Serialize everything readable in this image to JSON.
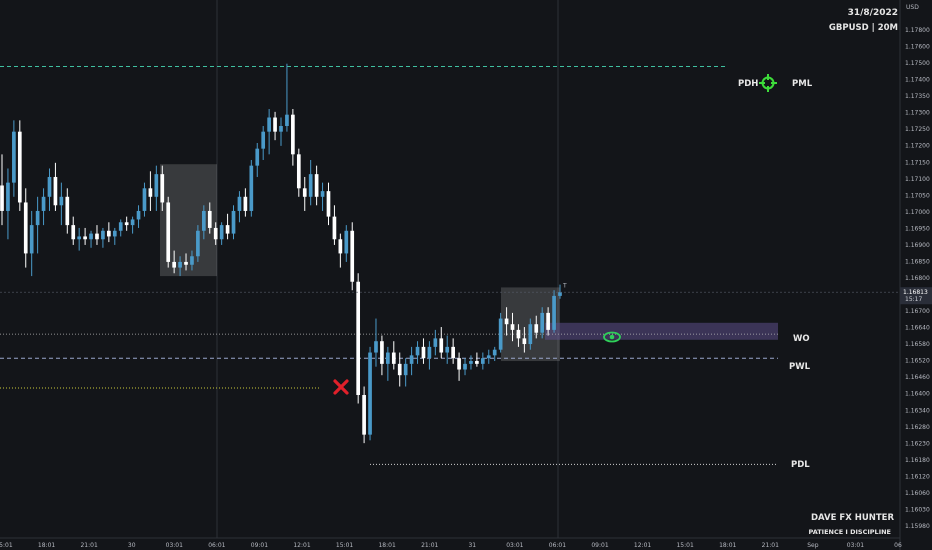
{
  "header": {
    "date": "31/8/2022",
    "symbol": "GBPUSD | 20M"
  },
  "branding": {
    "name": "DAVE FX HUNTER",
    "tagline": "PATIENCE I DISCIPLINE"
  },
  "currency": "USD",
  "current_price": {
    "price": "1.16813",
    "countdown": "15:17"
  },
  "levels": {
    "pdh": "PDH",
    "pml": "PML",
    "wo": "WO",
    "pwl": "PWL",
    "pdl": "PDL"
  },
  "colors": {
    "background": "#131519",
    "bull": "#4a9ac9",
    "bear": "#ffffff",
    "pdh_line": "#3fbfa0",
    "pwl_line": "#9aa6cc",
    "wo_zone": "#5d4f8a",
    "x_mark": "#e0202a",
    "target_icon": "#3ddc3a",
    "eye_icon": "#2fd05a",
    "yellow_line": "#c8c93a"
  },
  "chart_data": {
    "type": "candlestick",
    "symbol": "GBPUSD",
    "timeframe": "20M",
    "ylim": [
      1.15945,
      1.17845
    ],
    "y_ticks": [
      "1.17800",
      "1.17600",
      "1.17500",
      "1.17400",
      "1.17350",
      "1.17300",
      "1.17250",
      "1.17200",
      "1.17150",
      "1.17100",
      "1.17050",
      "1.17000",
      "1.16950",
      "1.16900",
      "1.16850",
      "1.16800",
      "1.16750",
      "1.16700",
      "1.16640",
      "1.16580",
      "1.16520",
      "1.16460",
      "1.16400",
      "1.16340",
      "1.16280",
      "1.16230",
      "1.16180",
      "1.16120",
      "1.16060",
      "1.16030",
      "1.15980"
    ],
    "x_ticks": [
      "15:01",
      "18:01",
      "21:01",
      "30",
      "03:01",
      "06:01",
      "09:01",
      "12:01",
      "15:01",
      "18:01",
      "21:01",
      "31",
      "03:01",
      "06:01",
      "09:01",
      "12:01",
      "15:01",
      "18:01",
      "21:01",
      "Sep",
      "03:01",
      "06"
    ],
    "levels": [
      {
        "label": "PDH",
        "price": 1.1761
      },
      {
        "label": "PML",
        "price": 1.1761
      },
      {
        "label": "WO",
        "price": 1.16665
      },
      {
        "label": "PWL",
        "price": 1.1658
      },
      {
        "label": "PDL",
        "price": 1.16205
      }
    ],
    "wo_zone": [
      1.16645,
      1.16705
    ],
    "annotation_boxes": [
      {
        "from": "03:01",
        "to": "06:01",
        "high": 1.17265,
        "low": 1.1687
      },
      {
        "from": "03:01",
        "to": "06:01",
        "high": 1.1683,
        "low": 1.1657
      }
    ],
    "last_price": 1.16813,
    "candles": [
      {
        "o": 1.1719,
        "h": 1.173,
        "l": 1.1705,
        "c": 1.171
      },
      {
        "o": 1.171,
        "h": 1.1725,
        "l": 1.17,
        "c": 1.172
      },
      {
        "o": 1.172,
        "h": 1.1742,
        "l": 1.1715,
        "c": 1.1738
      },
      {
        "o": 1.1738,
        "h": 1.1742,
        "l": 1.171,
        "c": 1.1713
      },
      {
        "o": 1.1713,
        "h": 1.1718,
        "l": 1.169,
        "c": 1.1695
      },
      {
        "o": 1.1695,
        "h": 1.171,
        "l": 1.1687,
        "c": 1.1705
      },
      {
        "o": 1.1705,
        "h": 1.1715,
        "l": 1.1695,
        "c": 1.171
      },
      {
        "o": 1.171,
        "h": 1.1718,
        "l": 1.1705,
        "c": 1.1715
      },
      {
        "o": 1.1715,
        "h": 1.1725,
        "l": 1.171,
        "c": 1.1722
      },
      {
        "o": 1.1722,
        "h": 1.1727,
        "l": 1.171,
        "c": 1.1712
      },
      {
        "o": 1.1712,
        "h": 1.172,
        "l": 1.1705,
        "c": 1.1715
      },
      {
        "o": 1.1715,
        "h": 1.1718,
        "l": 1.1702,
        "c": 1.1705
      },
      {
        "o": 1.1705,
        "h": 1.1708,
        "l": 1.1698,
        "c": 1.17
      },
      {
        "o": 1.17,
        "h": 1.1704,
        "l": 1.1696,
        "c": 1.1701
      },
      {
        "o": 1.1701,
        "h": 1.1704,
        "l": 1.1698,
        "c": 1.17
      },
      {
        "o": 1.17,
        "h": 1.1703,
        "l": 1.1697,
        "c": 1.1702
      },
      {
        "o": 1.1702,
        "h": 1.1705,
        "l": 1.1698,
        "c": 1.17
      },
      {
        "o": 1.17,
        "h": 1.1704,
        "l": 1.1697,
        "c": 1.1703
      },
      {
        "o": 1.1703,
        "h": 1.1706,
        "l": 1.1699,
        "c": 1.1701
      },
      {
        "o": 1.1701,
        "h": 1.1704,
        "l": 1.1698,
        "c": 1.1703
      },
      {
        "o": 1.1703,
        "h": 1.1707,
        "l": 1.1701,
        "c": 1.1706
      },
      {
        "o": 1.1706,
        "h": 1.1708,
        "l": 1.1703,
        "c": 1.1705
      },
      {
        "o": 1.1705,
        "h": 1.1708,
        "l": 1.1702,
        "c": 1.1707
      },
      {
        "o": 1.1707,
        "h": 1.1712,
        "l": 1.1704,
        "c": 1.171
      },
      {
        "o": 1.171,
        "h": 1.172,
        "l": 1.1708,
        "c": 1.1718
      },
      {
        "o": 1.1718,
        "h": 1.1724,
        "l": 1.171,
        "c": 1.1715
      },
      {
        "o": 1.1715,
        "h": 1.1726,
        "l": 1.171,
        "c": 1.1723
      },
      {
        "o": 1.1723,
        "h": 1.1726,
        "l": 1.171,
        "c": 1.1713
      },
      {
        "o": 1.1713,
        "h": 1.1715,
        "l": 1.169,
        "c": 1.1692
      },
      {
        "o": 1.1692,
        "h": 1.1696,
        "l": 1.1688,
        "c": 1.169
      },
      {
        "o": 1.169,
        "h": 1.1694,
        "l": 1.1687,
        "c": 1.1692
      },
      {
        "o": 1.1692,
        "h": 1.1695,
        "l": 1.1689,
        "c": 1.1691
      },
      {
        "o": 1.1691,
        "h": 1.1696,
        "l": 1.1689,
        "c": 1.1694
      },
      {
        "o": 1.1694,
        "h": 1.1705,
        "l": 1.1692,
        "c": 1.1703
      },
      {
        "o": 1.1703,
        "h": 1.1712,
        "l": 1.17,
        "c": 1.171
      },
      {
        "o": 1.171,
        "h": 1.1713,
        "l": 1.1702,
        "c": 1.1704
      },
      {
        "o": 1.1704,
        "h": 1.1706,
        "l": 1.1698,
        "c": 1.17
      },
      {
        "o": 1.17,
        "h": 1.1706,
        "l": 1.1698,
        "c": 1.1705
      },
      {
        "o": 1.1705,
        "h": 1.1709,
        "l": 1.17,
        "c": 1.1702
      },
      {
        "o": 1.1702,
        "h": 1.1712,
        "l": 1.17,
        "c": 1.171
      },
      {
        "o": 1.171,
        "h": 1.1717,
        "l": 1.1706,
        "c": 1.1715
      },
      {
        "o": 1.1715,
        "h": 1.1718,
        "l": 1.1708,
        "c": 1.171
      },
      {
        "o": 1.171,
        "h": 1.1728,
        "l": 1.1708,
        "c": 1.1726
      },
      {
        "o": 1.1726,
        "h": 1.1734,
        "l": 1.1722,
        "c": 1.1732
      },
      {
        "o": 1.1732,
        "h": 1.174,
        "l": 1.1728,
        "c": 1.1738
      },
      {
        "o": 1.1738,
        "h": 1.1746,
        "l": 1.173,
        "c": 1.1743
      },
      {
        "o": 1.1743,
        "h": 1.1745,
        "l": 1.1735,
        "c": 1.1738
      },
      {
        "o": 1.1738,
        "h": 1.1743,
        "l": 1.1733,
        "c": 1.174
      },
      {
        "o": 1.174,
        "h": 1.1762,
        "l": 1.1738,
        "c": 1.1744
      },
      {
        "o": 1.1744,
        "h": 1.1746,
        "l": 1.1726,
        "c": 1.173
      },
      {
        "o": 1.173,
        "h": 1.1732,
        "l": 1.1715,
        "c": 1.1718
      },
      {
        "o": 1.1718,
        "h": 1.1722,
        "l": 1.171,
        "c": 1.1715
      },
      {
        "o": 1.1715,
        "h": 1.1728,
        "l": 1.1712,
        "c": 1.1723
      },
      {
        "o": 1.1723,
        "h": 1.1726,
        "l": 1.1712,
        "c": 1.1715
      },
      {
        "o": 1.1715,
        "h": 1.172,
        "l": 1.171,
        "c": 1.1717
      },
      {
        "o": 1.1717,
        "h": 1.172,
        "l": 1.1705,
        "c": 1.1708
      },
      {
        "o": 1.1708,
        "h": 1.1712,
        "l": 1.1698,
        "c": 1.17
      },
      {
        "o": 1.17,
        "h": 1.1702,
        "l": 1.169,
        "c": 1.1695
      },
      {
        "o": 1.1695,
        "h": 1.1705,
        "l": 1.1692,
        "c": 1.1703
      },
      {
        "o": 1.1703,
        "h": 1.1706,
        "l": 1.1682,
        "c": 1.1685
      },
      {
        "o": 1.1685,
        "h": 1.1688,
        "l": 1.1642,
        "c": 1.1645
      },
      {
        "o": 1.1645,
        "h": 1.1648,
        "l": 1.1628,
        "c": 1.1631
      },
      {
        "o": 1.1631,
        "h": 1.1662,
        "l": 1.1629,
        "c": 1.166
      },
      {
        "o": 1.166,
        "h": 1.1672,
        "l": 1.1655,
        "c": 1.1664
      },
      {
        "o": 1.1664,
        "h": 1.1666,
        "l": 1.1652,
        "c": 1.1656
      },
      {
        "o": 1.1656,
        "h": 1.1662,
        "l": 1.165,
        "c": 1.166
      },
      {
        "o": 1.166,
        "h": 1.1664,
        "l": 1.1654,
        "c": 1.1656
      },
      {
        "o": 1.1656,
        "h": 1.166,
        "l": 1.1648,
        "c": 1.1652
      },
      {
        "o": 1.1652,
        "h": 1.1658,
        "l": 1.1648,
        "c": 1.1656
      },
      {
        "o": 1.1656,
        "h": 1.1662,
        "l": 1.1652,
        "c": 1.1659
      },
      {
        "o": 1.1659,
        "h": 1.1664,
        "l": 1.1656,
        "c": 1.1662
      },
      {
        "o": 1.1662,
        "h": 1.1665,
        "l": 1.1656,
        "c": 1.1658
      },
      {
        "o": 1.1658,
        "h": 1.1664,
        "l": 1.1654,
        "c": 1.1662
      },
      {
        "o": 1.1662,
        "h": 1.1668,
        "l": 1.1659,
        "c": 1.1665
      },
      {
        "o": 1.1665,
        "h": 1.1669,
        "l": 1.1658,
        "c": 1.166
      },
      {
        "o": 1.166,
        "h": 1.1666,
        "l": 1.1656,
        "c": 1.1662
      },
      {
        "o": 1.1662,
        "h": 1.1665,
        "l": 1.1656,
        "c": 1.1658
      },
      {
        "o": 1.1658,
        "h": 1.166,
        "l": 1.165,
        "c": 1.1654
      },
      {
        "o": 1.1654,
        "h": 1.1658,
        "l": 1.1652,
        "c": 1.1656
      },
      {
        "o": 1.1656,
        "h": 1.1659,
        "l": 1.1654,
        "c": 1.1657
      },
      {
        "o": 1.1657,
        "h": 1.166,
        "l": 1.1655,
        "c": 1.1656
      },
      {
        "o": 1.1656,
        "h": 1.166,
        "l": 1.1654,
        "c": 1.1658
      },
      {
        "o": 1.1658,
        "h": 1.1661,
        "l": 1.1656,
        "c": 1.1659
      },
      {
        "o": 1.1659,
        "h": 1.1662,
        "l": 1.1657,
        "c": 1.1661
      },
      {
        "o": 1.1661,
        "h": 1.1674,
        "l": 1.166,
        "c": 1.1672
      },
      {
        "o": 1.1672,
        "h": 1.1676,
        "l": 1.1666,
        "c": 1.167
      },
      {
        "o": 1.167,
        "h": 1.1674,
        "l": 1.1664,
        "c": 1.1668
      },
      {
        "o": 1.1668,
        "h": 1.167,
        "l": 1.1662,
        "c": 1.1665
      },
      {
        "o": 1.1665,
        "h": 1.1669,
        "l": 1.166,
        "c": 1.1663
      },
      {
        "o": 1.1663,
        "h": 1.1672,
        "l": 1.1661,
        "c": 1.167
      },
      {
        "o": 1.167,
        "h": 1.1673,
        "l": 1.1665,
        "c": 1.1667
      },
      {
        "o": 1.1667,
        "h": 1.1676,
        "l": 1.1665,
        "c": 1.1674
      },
      {
        "o": 1.1674,
        "h": 1.1676,
        "l": 1.1666,
        "c": 1.1668
      },
      {
        "o": 1.1668,
        "h": 1.1682,
        "l": 1.1667,
        "c": 1.168
      },
      {
        "o": 1.168,
        "h": 1.1684,
        "l": 1.1679,
        "c": 1.16813
      }
    ]
  }
}
